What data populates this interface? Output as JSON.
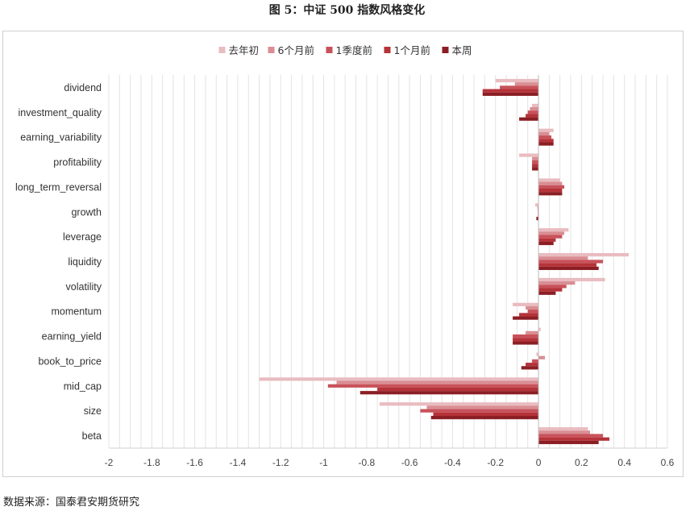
{
  "figure_title": "图 5：中证 500 指数风格变化",
  "source": "数据来源：国泰君安期货研究",
  "chart_data": {
    "type": "bar",
    "orientation": "horizontal",
    "categories": [
      "dividend",
      "investment_quality",
      "earning_variability",
      "profitability",
      "long_term_reversal",
      "growth",
      "leverage",
      "liquidity",
      "volatility",
      "momentum",
      "earning_yield",
      "book_to_price",
      "mid_cap",
      "size",
      "beta"
    ],
    "series": [
      {
        "name": "去年初",
        "color": "#e9bcc0",
        "values": [
          -0.2,
          -0.03,
          0.07,
          -0.09,
          0.1,
          -0.015,
          0.14,
          0.42,
          0.31,
          -0.12,
          0.01,
          -0.01,
          -1.3,
          -0.74,
          0.23
        ]
      },
      {
        "name": "6个月前",
        "color": "#d98e93",
        "values": [
          -0.11,
          -0.04,
          0.05,
          -0.03,
          0.11,
          -0.005,
          0.12,
          0.23,
          0.17,
          -0.06,
          -0.06,
          0.03,
          -0.94,
          -0.52,
          0.24
        ]
      },
      {
        "name": "1季度前",
        "color": "#c8525a",
        "values": [
          -0.18,
          -0.05,
          0.06,
          -0.03,
          0.12,
          -0.003,
          0.11,
          0.3,
          0.13,
          -0.05,
          -0.12,
          -0.03,
          -0.98,
          -0.55,
          0.3
        ]
      },
      {
        "name": "1个月前",
        "color": "#b53339",
        "values": [
          -0.26,
          -0.06,
          0.07,
          -0.03,
          0.11,
          -0.003,
          0.08,
          0.27,
          0.11,
          -0.09,
          -0.12,
          -0.06,
          -0.75,
          -0.49,
          0.33
        ]
      },
      {
        "name": "本周",
        "color": "#8b1e24",
        "values": [
          -0.26,
          -0.09,
          0.07,
          -0.03,
          0.11,
          -0.01,
          0.07,
          0.28,
          0.08,
          -0.12,
          -0.12,
          -0.08,
          -0.83,
          -0.5,
          0.28
        ]
      }
    ],
    "xlim": [
      -2,
      0.6
    ],
    "xticks": [
      "-2",
      "-1.8",
      "-1.6",
      "-1.4",
      "-1.2",
      "-1",
      "-0.8",
      "-0.6",
      "-0.4",
      "-0.2",
      "0",
      "0.2",
      "0.4",
      "0.6"
    ],
    "grid": "vertical",
    "legend_position": "top"
  }
}
